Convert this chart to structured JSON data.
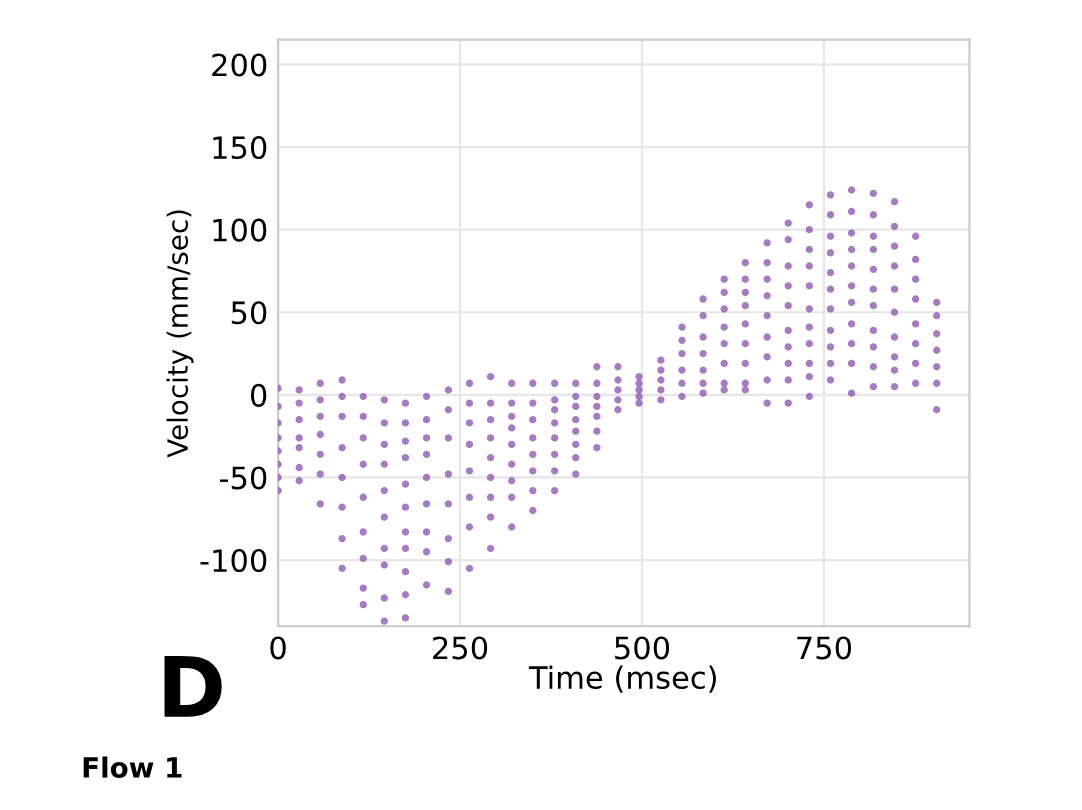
{
  "chart_data": {
    "type": "scatter",
    "xlabel": "Time (msec)",
    "ylabel": "Velocity (mm/sec)",
    "annotations": [
      "D",
      "Flow 1"
    ],
    "xlim": [
      0,
      950
    ],
    "xticks": [
      0,
      250,
      500,
      750
    ],
    "ylim": [
      -140,
      215
    ],
    "yticks": [
      -100,
      -50,
      0,
      50,
      100,
      150,
      200
    ],
    "grid": true,
    "marker": "circle",
    "series": [
      {
        "color": "#8a4fb0",
        "x": [
          0,
          0,
          0,
          0,
          0,
          0,
          0,
          0,
          29,
          29,
          29,
          29,
          29,
          29,
          29,
          58,
          58,
          58,
          58,
          58,
          58,
          58,
          88,
          88,
          88,
          88,
          88,
          88,
          88,
          88,
          117,
          117,
          117,
          117,
          117,
          117,
          117,
          117,
          117,
          146,
          146,
          146,
          146,
          146,
          146,
          146,
          146,
          146,
          146,
          175,
          175,
          175,
          175,
          175,
          175,
          175,
          175,
          175,
          175,
          175,
          204,
          204,
          204,
          204,
          204,
          204,
          204,
          204,
          204,
          234,
          234,
          234,
          234,
          234,
          234,
          234,
          234,
          263,
          263,
          263,
          263,
          263,
          263,
          263,
          263,
          292,
          292,
          292,
          292,
          292,
          292,
          292,
          292,
          292,
          321,
          321,
          321,
          321,
          321,
          321,
          321,
          321,
          321,
          350,
          350,
          350,
          350,
          350,
          350,
          350,
          350,
          380,
          380,
          380,
          380,
          380,
          380,
          380,
          380,
          409,
          409,
          409,
          409,
          409,
          409,
          409,
          409,
          438,
          438,
          438,
          438,
          438,
          438,
          438,
          467,
          467,
          467,
          467,
          467,
          496,
          496,
          496,
          496,
          496,
          526,
          526,
          526,
          526,
          526,
          555,
          555,
          555,
          555,
          555,
          555,
          584,
          584,
          584,
          584,
          584,
          584,
          584,
          613,
          613,
          613,
          613,
          613,
          613,
          613,
          613,
          642,
          642,
          642,
          642,
          642,
          642,
          642,
          642,
          642,
          672,
          672,
          672,
          672,
          672,
          672,
          672,
          672,
          672,
          701,
          701,
          701,
          701,
          701,
          701,
          701,
          701,
          701,
          701,
          730,
          730,
          730,
          730,
          730,
          730,
          730,
          730,
          730,
          730,
          730,
          759,
          759,
          759,
          759,
          759,
          759,
          759,
          759,
          759,
          759,
          759,
          788,
          788,
          788,
          788,
          788,
          788,
          788,
          788,
          788,
          788,
          788,
          818,
          818,
          818,
          818,
          818,
          818,
          818,
          818,
          818,
          818,
          818,
          847,
          847,
          847,
          847,
          847,
          847,
          847,
          847,
          847,
          847,
          876,
          876,
          876,
          876,
          876,
          876,
          876,
          876,
          905,
          905,
          905,
          905,
          905,
          905,
          905
        ],
        "values": [
          4,
          -7,
          -17,
          -26,
          -34,
          -42,
          -50,
          -58,
          3,
          -5,
          -15,
          -26,
          -32,
          -44,
          -52,
          7,
          -3,
          -13,
          -24,
          -36,
          -48,
          -66,
          9,
          -1,
          -13,
          -32,
          -50,
          -68,
          -87,
          -105,
          -1,
          -13,
          -26,
          -42,
          -62,
          -83,
          -99,
          -117,
          -127,
          -3,
          -17,
          -30,
          -42,
          -58,
          -74,
          -93,
          -103,
          -123,
          -137,
          -5,
          -17,
          -28,
          -38,
          -54,
          -68,
          -83,
          -93,
          -107,
          -121,
          -135,
          -1,
          -15,
          -26,
          -36,
          -50,
          -66,
          -83,
          -95,
          -115,
          3,
          -9,
          -26,
          -48,
          -66,
          -87,
          -101,
          -119,
          7,
          -5,
          -17,
          -30,
          -46,
          -62,
          -80,
          -105,
          11,
          -5,
          -15,
          -26,
          -38,
          -50,
          -62,
          -74,
          -93,
          7,
          -5,
          -13,
          -20,
          -30,
          -42,
          -52,
          -62,
          -80,
          7,
          -5,
          -15,
          -26,
          -36,
          -46,
          -58,
          -70,
          7,
          -3,
          -9,
          -17,
          -26,
          -36,
          -46,
          -58,
          7,
          -1,
          -7,
          -15,
          -22,
          -30,
          -38,
          -48,
          17,
          7,
          -1,
          -7,
          -13,
          -22,
          -32,
          17,
          9,
          3,
          -3,
          -9,
          11,
          7,
          3,
          -1,
          -5,
          21,
          15,
          9,
          3,
          -3,
          41,
          33,
          25,
          15,
          7,
          -1,
          58,
          48,
          35,
          25,
          15,
          7,
          1,
          70,
          62,
          52,
          41,
          31,
          19,
          7,
          3,
          80,
          70,
          62,
          54,
          43,
          31,
          19,
          7,
          3,
          92,
          80,
          70,
          60,
          48,
          35,
          23,
          9,
          -5,
          104,
          94,
          78,
          66,
          54,
          39,
          29,
          19,
          9,
          -5,
          115,
          100,
          88,
          78,
          66,
          52,
          41,
          31,
          19,
          11,
          -1,
          121,
          109,
          96,
          86,
          74,
          64,
          52,
          39,
          29,
          19,
          9,
          124,
          111,
          98,
          88,
          78,
          66,
          56,
          43,
          31,
          19,
          1,
          122,
          109,
          96,
          88,
          76,
          64,
          54,
          39,
          29,
          17,
          5,
          117,
          102,
          90,
          78,
          64,
          50,
          35,
          23,
          15,
          5,
          96,
          82,
          70,
          58,
          43,
          31,
          19,
          7,
          56,
          48,
          37,
          27,
          17,
          7,
          -9
        ]
      }
    ]
  }
}
